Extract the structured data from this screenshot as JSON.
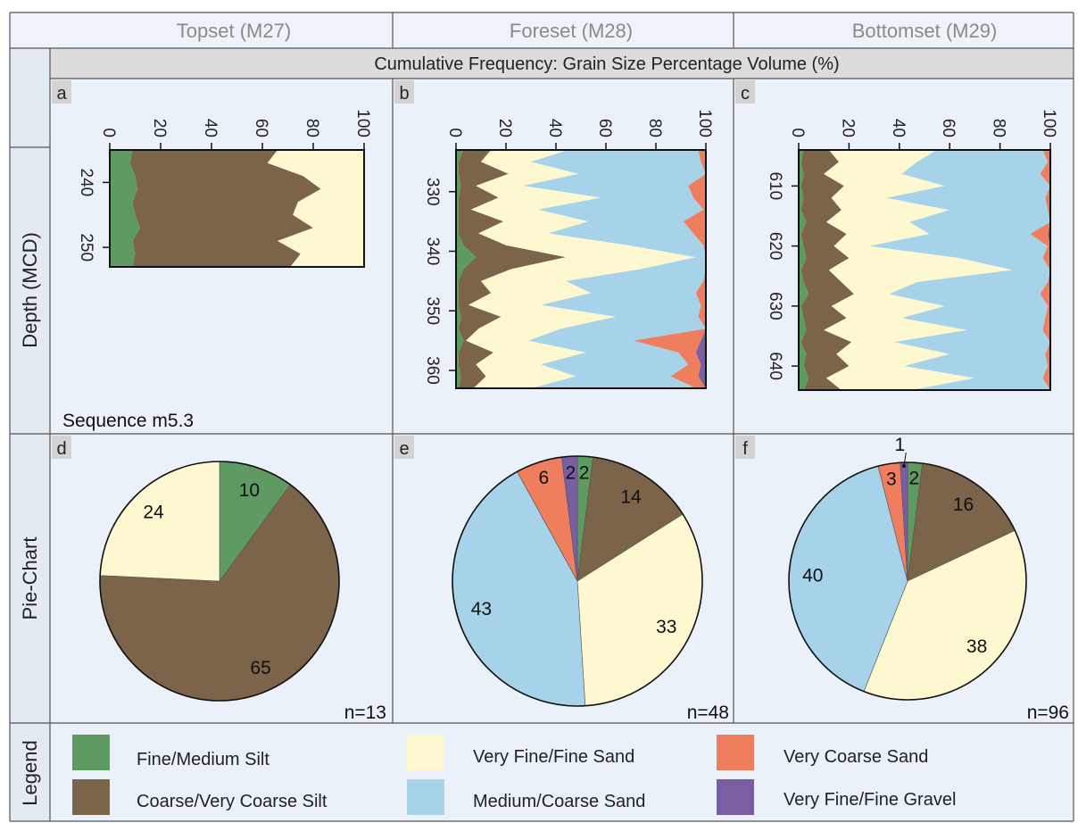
{
  "header": {
    "columns": [
      "Topset (M27)",
      "Foreset (M28)",
      "Bottomset (M29)"
    ],
    "subtitle": "Cumulative Frequency: Grain Size Percentage Volume  (%)"
  },
  "rows": {
    "depth_label": "Depth (MCD)",
    "pie_label": "Pie-Chart",
    "legend_label": "Legend"
  },
  "panel_letters": [
    "a",
    "b",
    "c",
    "d",
    "e",
    "f"
  ],
  "sequence_label": "Sequence m5.3",
  "colors": {
    "fine_medium_silt": "#5e9a62",
    "coarse_very_coarse_silt": "#7b6449",
    "very_fine_fine_sand": "#fdf8d0",
    "medium_coarse_sand": "#a6d3ea",
    "very_coarse_sand": "#ee7e5e",
    "very_fine_fine_gravel": "#7a5ea3",
    "panel_bg": "#eaf1f8",
    "grid_line": "#555555"
  },
  "legend": [
    {
      "label": "Fine/Medium Silt",
      "color": "#5e9a62"
    },
    {
      "label": "Coarse/Very Coarse Silt",
      "color": "#7b6449"
    },
    {
      "label": "Very Fine/Fine Sand",
      "color": "#fdf8d0"
    },
    {
      "label": "Medium/Coarse Sand",
      "color": "#a6d3ea"
    },
    {
      "label": "Very Coarse Sand",
      "color": "#ee7e5e"
    },
    {
      "label": "Very Fine/Fine Gravel",
      "color": "#7a5ea3"
    }
  ],
  "chart_data": [
    {
      "type": "area",
      "panel": "a",
      "x_ticks": [
        "0",
        "20",
        "40",
        "60",
        "80",
        "100"
      ],
      "xlim": [
        0,
        100
      ],
      "depth_ticks": [
        "240",
        "250"
      ],
      "depth_range": [
        235,
        253
      ],
      "depth": [
        235,
        237,
        239,
        241,
        243,
        245,
        247,
        249,
        251,
        253
      ],
      "cumulative_boundaries": [
        {
          "name": "Fine/Medium Silt",
          "values": [
            9,
            8,
            10,
            11,
            9,
            10,
            12,
            9,
            10,
            9
          ]
        },
        {
          "name": "Coarse/Very Coarse Silt",
          "values": [
            66,
            62,
            76,
            83,
            74,
            72,
            80,
            66,
            75,
            71
          ]
        },
        {
          "name": "Very Fine/Fine Sand",
          "values": [
            100,
            100,
            100,
            100,
            100,
            100,
            100,
            100,
            100,
            100
          ]
        }
      ]
    },
    {
      "type": "area",
      "panel": "b",
      "x_ticks": [
        "0",
        "20",
        "40",
        "60",
        "80",
        "100"
      ],
      "xlim": [
        0,
        100
      ],
      "depth_ticks": [
        "330",
        "340",
        "350",
        "360"
      ],
      "depth_range": [
        323,
        363
      ],
      "depth": [
        323,
        325,
        327,
        329,
        331,
        333,
        335,
        337,
        339,
        341,
        343,
        345,
        347,
        349,
        351,
        353,
        355,
        357,
        359,
        361,
        363
      ],
      "cumulative_boundaries": [
        {
          "name": "Fine/Medium Silt",
          "values": [
            3,
            1,
            1,
            2,
            1,
            1,
            1,
            1,
            3,
            8,
            3,
            1,
            1,
            1,
            2,
            1,
            3,
            1,
            1,
            2,
            1
          ]
        },
        {
          "name": "Coarse/Very Coarse Silt",
          "values": [
            14,
            10,
            21,
            8,
            17,
            6,
            19,
            9,
            20,
            44,
            22,
            10,
            14,
            5,
            18,
            9,
            4,
            15,
            8,
            12,
            7
          ]
        },
        {
          "name": "Very Fine/Fine Sand",
          "values": [
            45,
            30,
            49,
            27,
            58,
            33,
            53,
            37,
            69,
            96,
            74,
            44,
            54,
            34,
            64,
            42,
            29,
            52,
            34,
            48,
            30
          ]
        },
        {
          "name": "Medium/Coarse Sand",
          "values": [
            97,
            98,
            100,
            93,
            95,
            99,
            91,
            95,
            99,
            100,
            100,
            99,
            96,
            98,
            97,
            100,
            71,
            89,
            93,
            86,
            96
          ]
        },
        {
          "name": "Very Coarse Sand",
          "values": [
            100,
            100,
            100,
            100,
            100,
            100,
            100,
            100,
            100,
            100,
            100,
            100,
            100,
            100,
            100,
            100,
            98,
            96,
            98,
            97,
            100
          ]
        },
        {
          "name": "Very Fine/Fine Gravel",
          "values": [
            100,
            100,
            100,
            100,
            100,
            100,
            100,
            100,
            100,
            100,
            100,
            100,
            100,
            100,
            100,
            100,
            100,
            100,
            100,
            100,
            100
          ]
        }
      ]
    },
    {
      "type": "area",
      "panel": "c",
      "x_ticks": [
        "0",
        "20",
        "40",
        "60",
        "80",
        "100"
      ],
      "xlim": [
        0,
        100
      ],
      "depth_ticks": [
        "610",
        "620",
        "630",
        "640"
      ],
      "depth_range": [
        604,
        644
      ],
      "depth": [
        604,
        606,
        608,
        610,
        612,
        614,
        616,
        618,
        620,
        622,
        624,
        626,
        628,
        630,
        632,
        634,
        636,
        638,
        640,
        642,
        644
      ],
      "cumulative_boundaries": [
        {
          "name": "Fine/Medium Silt",
          "values": [
            2,
            1,
            2,
            1,
            2,
            1,
            3,
            1,
            2,
            3,
            1,
            2,
            4,
            1,
            2,
            3,
            1,
            3,
            2,
            4,
            2
          ]
        },
        {
          "name": "Coarse/Very Coarse Silt",
          "values": [
            12,
            16,
            10,
            18,
            13,
            17,
            11,
            19,
            14,
            20,
            12,
            17,
            22,
            13,
            19,
            10,
            21,
            15,
            20,
            11,
            17
          ]
        },
        {
          "name": "Very Fine/Fine Sand",
          "values": [
            55,
            47,
            41,
            58,
            35,
            60,
            44,
            52,
            28,
            64,
            85,
            47,
            36,
            58,
            41,
            67,
            38,
            60,
            42,
            70,
            45
          ]
        },
        {
          "name": "Medium/Coarse Sand",
          "values": [
            97,
            99,
            96,
            100,
            98,
            99,
            100,
            92,
            99,
            97,
            100,
            99,
            96,
            99,
            98,
            97,
            100,
            98,
            99,
            97,
            100
          ]
        },
        {
          "name": "Very Coarse Sand",
          "values": [
            100,
            100,
            100,
            100,
            100,
            100,
            100,
            99,
            100,
            100,
            100,
            100,
            100,
            100,
            100,
            100,
            100,
            100,
            100,
            100,
            100
          ]
        },
        {
          "name": "Very Fine/Fine Gravel",
          "values": [
            100,
            100,
            100,
            100,
            100,
            100,
            100,
            100,
            100,
            100,
            100,
            100,
            100,
            100,
            100,
            100,
            100,
            100,
            100,
            100,
            100
          ]
        }
      ]
    },
    {
      "type": "pie",
      "panel": "d",
      "n_label": "n=13",
      "slices": [
        {
          "name": "Fine/Medium Silt",
          "value": 10,
          "label": "10"
        },
        {
          "name": "Coarse/Very Coarse Silt",
          "value": 65,
          "label": "65"
        },
        {
          "name": "Very Fine/Fine Sand",
          "value": 24,
          "label": "24"
        }
      ]
    },
    {
      "type": "pie",
      "panel": "e",
      "n_label": "n=48",
      "slices": [
        {
          "name": "Fine/Medium Silt",
          "value": 2,
          "label": "2"
        },
        {
          "name": "Coarse/Very Coarse Silt",
          "value": 14,
          "label": "14"
        },
        {
          "name": "Very Fine/Fine Sand",
          "value": 33,
          "label": "33"
        },
        {
          "name": "Medium/Coarse Sand",
          "value": 43,
          "label": "43"
        },
        {
          "name": "Very Coarse Sand",
          "value": 6,
          "label": "6"
        },
        {
          "name": "Very Fine/Fine Gravel",
          "value": 2,
          "label": "2"
        }
      ]
    },
    {
      "type": "pie",
      "panel": "f",
      "n_label": "n=96",
      "slices": [
        {
          "name": "Fine/Medium Silt",
          "value": 2,
          "label": "2"
        },
        {
          "name": "Coarse/Very Coarse Silt",
          "value": 16,
          "label": "16"
        },
        {
          "name": "Very Fine/Fine Sand",
          "value": 38,
          "label": "38"
        },
        {
          "name": "Medium/Coarse Sand",
          "value": 40,
          "label": "40"
        },
        {
          "name": "Very Coarse Sand",
          "value": 3,
          "label": "3"
        },
        {
          "name": "Very Fine/Fine Gravel",
          "value": 1,
          "label": "1"
        }
      ]
    }
  ]
}
